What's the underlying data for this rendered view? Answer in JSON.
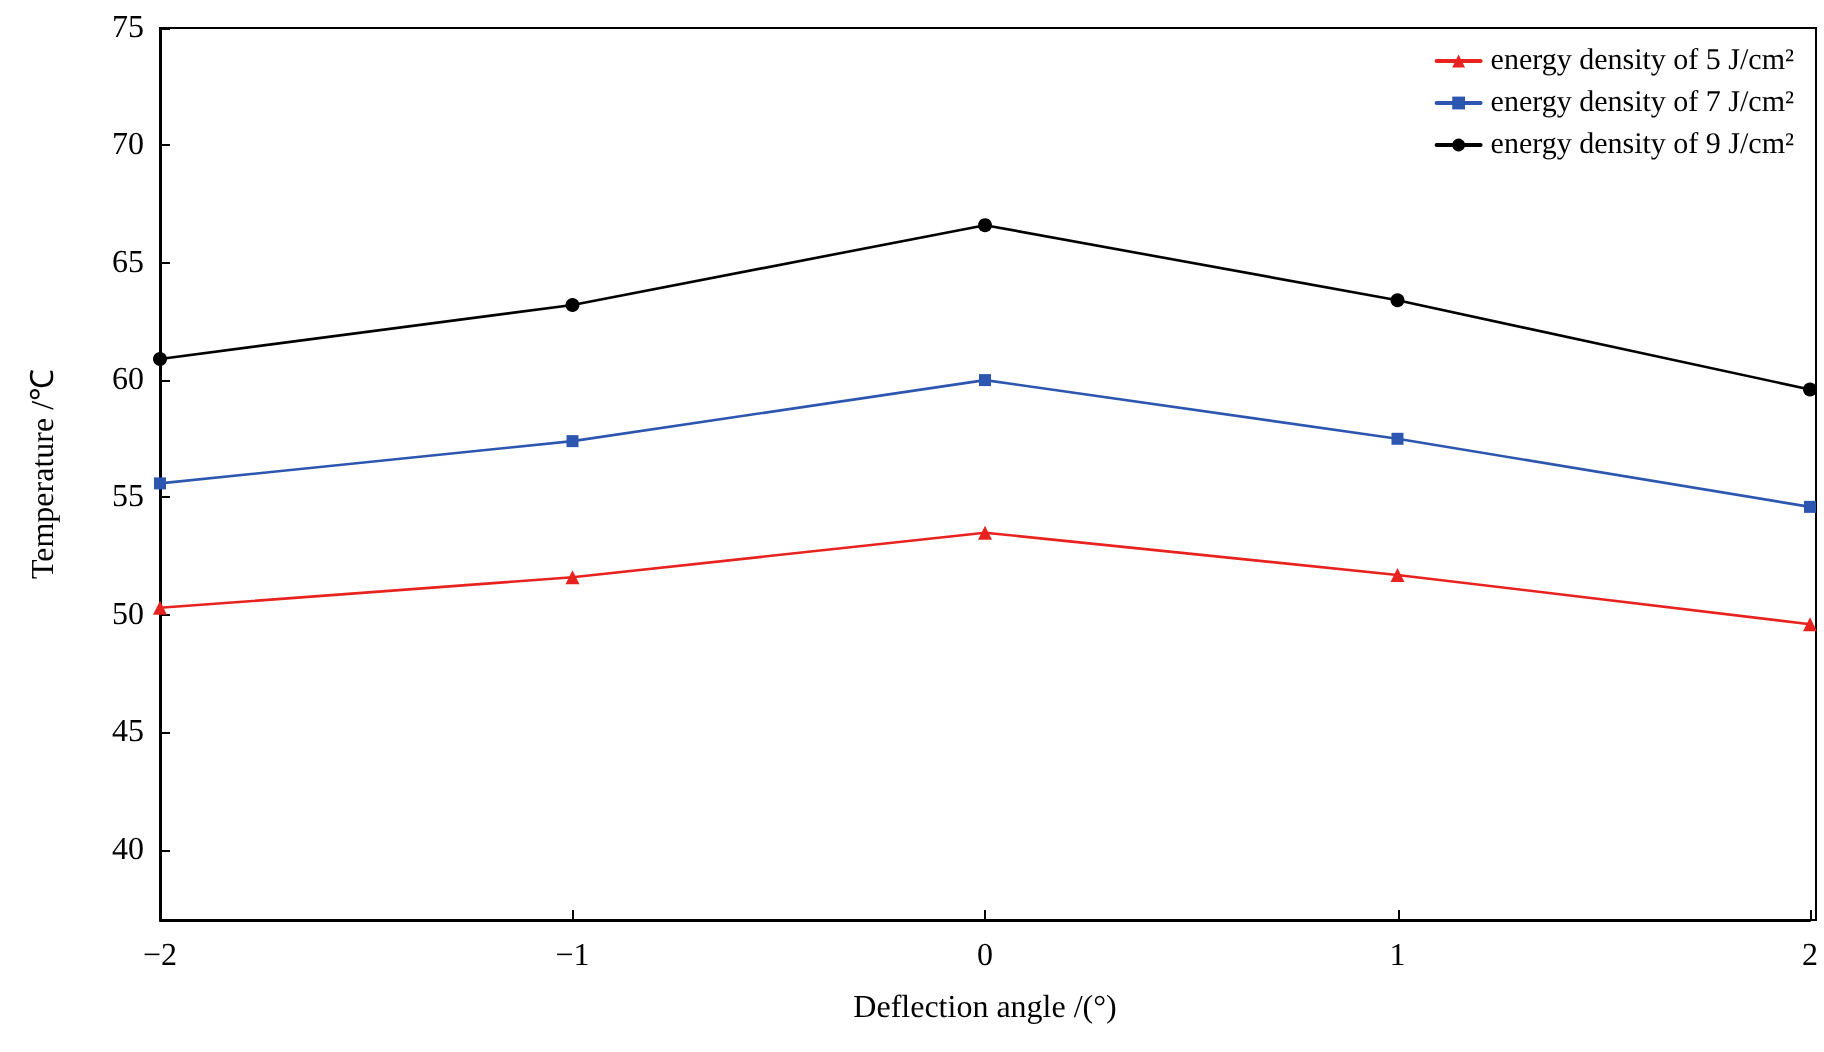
{
  "chart_data": {
    "type": "line",
    "xlabel": "Deflection angle /(°)",
    "ylabel": "Temperature /℃",
    "x": [
      -2,
      -1,
      0,
      1,
      2
    ],
    "xlim": [
      -2,
      2
    ],
    "xticks": [
      {
        "value": -2,
        "label": "−2"
      },
      {
        "value": -1,
        "label": "−1"
      },
      0,
      1,
      2
    ],
    "ylim": [
      37,
      75
    ],
    "yticks": [
      40,
      45,
      50,
      55,
      60,
      65,
      70,
      75
    ],
    "grid": false,
    "legend": "top right",
    "series": [
      {
        "name": "energy density of 5 J/cm²",
        "color": "#e8231f",
        "marker": "triangle",
        "values": [
          50.3,
          51.6,
          53.5,
          51.7,
          49.6
        ]
      },
      {
        "name": "energy density of 7 J/cm²",
        "color": "#2c56b0",
        "marker": "square",
        "values": [
          55.6,
          57.4,
          60.0,
          57.5,
          54.6
        ]
      },
      {
        "name": "energy density of 9 J/cm²",
        "color": "#000000",
        "marker": "circle",
        "values": [
          60.9,
          63.2,
          66.6,
          63.4,
          59.6
        ]
      }
    ]
  }
}
